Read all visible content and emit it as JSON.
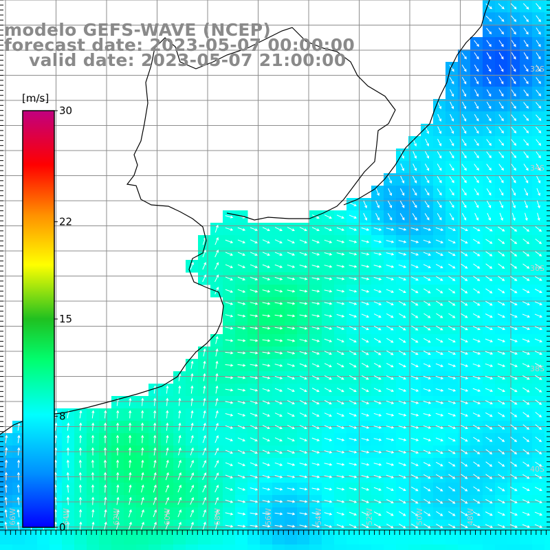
{
  "title": {
    "line1": "modelo GEFS-WAVE (NCEP)",
    "line2": "forecast date: 2023-05-07 00:00:00",
    "line3": "valid date: 2023-05-07 21:00:00"
  },
  "colorbar": {
    "unit": "[m/s]",
    "tick_labels": [
      "30",
      "22",
      "15",
      "8",
      "0"
    ],
    "tick_values": [
      30,
      22,
      15,
      8,
      0
    ],
    "range": [
      0,
      30
    ],
    "colors": [
      "#0000ff",
      "#0090ff",
      "#00ffff",
      "#00ff40",
      "#20c020",
      "#ffff00",
      "#ff9000",
      "#ff0000",
      "#c00080"
    ]
  },
  "lat_labels": [
    "32S",
    "34S",
    "36S",
    "38S",
    "40S"
  ],
  "lon_labels": [
    "66W",
    "64W",
    "62W",
    "60W",
    "58W",
    "56W",
    "54W",
    "52W",
    "50W",
    "48W"
  ],
  "colors": {
    "land": "#ffffff",
    "coast": "#000000",
    "grid": "#8c8c8c",
    "arrows": "#ffffff",
    "title": "#8a8a8a"
  }
}
